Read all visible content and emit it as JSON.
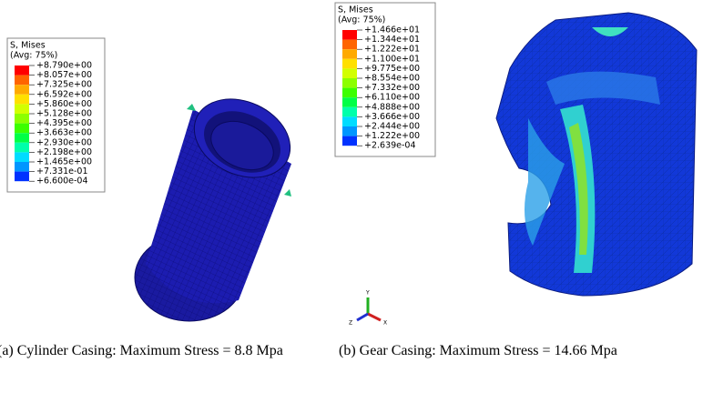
{
  "figures": [
    {
      "legend": {
        "title": "S, Mises",
        "subtitle": "(Avg: 75%)",
        "labels": [
          "+8.790e+00",
          "+8.057e+00",
          "+7.325e+00",
          "+6.592e+00",
          "+5.860e+00",
          "+5.128e+00",
          "+4.395e+00",
          "+3.663e+00",
          "+2.930e+00",
          "+2.198e+00",
          "+1.465e+00",
          "+7.331e-01",
          "+6.600e-04"
        ]
      },
      "caption": "(a) Cylinder Casing: Maximum Stress = 8.8 Mpa"
    },
    {
      "legend": {
        "title": "S, Mises",
        "subtitle": "(Avg: 75%)",
        "labels": [
          "+1.466e+01",
          "+1.344e+01",
          "+1.222e+01",
          "+1.100e+01",
          "+9.775e+00",
          "+8.554e+00",
          "+7.332e+00",
          "+6.110e+00",
          "+4.888e+00",
          "+3.666e+00",
          "+2.444e+00",
          "+1.222e+00",
          "+2.639e-04"
        ]
      },
      "caption": "(b) Gear Casing: Maximum Stress = 14.66 Mpa"
    }
  ],
  "triad": {
    "y": "Y",
    "x": "X",
    "z": "Z"
  }
}
